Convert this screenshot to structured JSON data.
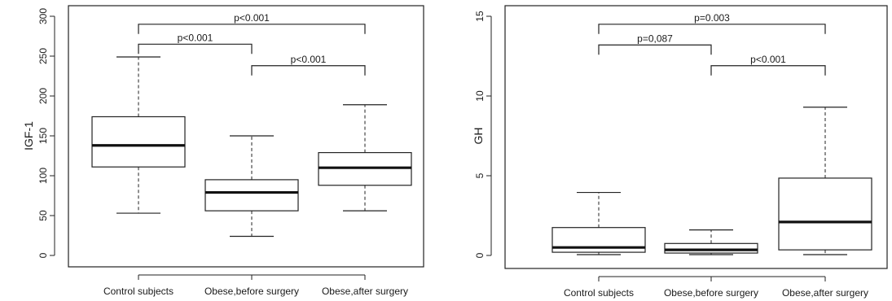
{
  "chart_data": [
    {
      "type": "boxplot",
      "ylabel": "IGF-1",
      "ylim": [
        0,
        300
      ],
      "yticks": [
        0,
        50,
        100,
        150,
        200,
        250,
        300
      ],
      "categories": [
        "Control subjects",
        "Obese,before surgery",
        "Obese,after surgery"
      ],
      "boxes": [
        {
          "min": 53,
          "q1": 111,
          "median": 138,
          "q3": 174,
          "max": 249
        },
        {
          "min": 24,
          "q1": 56,
          "median": 79,
          "q3": 95,
          "max": 150
        },
        {
          "min": 56,
          "q1": 88,
          "median": 110,
          "q3": 129,
          "max": 189
        }
      ],
      "comparisons": [
        {
          "from": 0,
          "to": 2,
          "y": 290,
          "label": "p<0.001"
        },
        {
          "from": 0,
          "to": 1,
          "y": 265,
          "label": "p<0.001"
        },
        {
          "from": 1,
          "to": 2,
          "y": 238,
          "label": "p<0.001"
        }
      ]
    },
    {
      "type": "boxplot",
      "ylabel": "GH",
      "ylim": [
        0,
        15
      ],
      "yticks": [
        0,
        5,
        10,
        15
      ],
      "categories": [
        "Control subjects",
        "Obese,before surgery",
        "Obese,after surgery"
      ],
      "boxes": [
        {
          "min": 0.05,
          "q1": 0.2,
          "median": 0.5,
          "q3": 1.75,
          "max": 3.95
        },
        {
          "min": 0.05,
          "q1": 0.15,
          "median": 0.35,
          "q3": 0.75,
          "max": 1.6
        },
        {
          "min": 0.05,
          "q1": 0.35,
          "median": 2.1,
          "q3": 4.85,
          "max": 9.3
        }
      ],
      "comparisons": [
        {
          "from": 0,
          "to": 2,
          "y": 14.5,
          "label": "p=0.003"
        },
        {
          "from": 0,
          "to": 1,
          "y": 13.2,
          "label": "p=0,087"
        },
        {
          "from": 1,
          "to": 2,
          "y": 11.9,
          "label": "p<0.001"
        }
      ]
    }
  ]
}
